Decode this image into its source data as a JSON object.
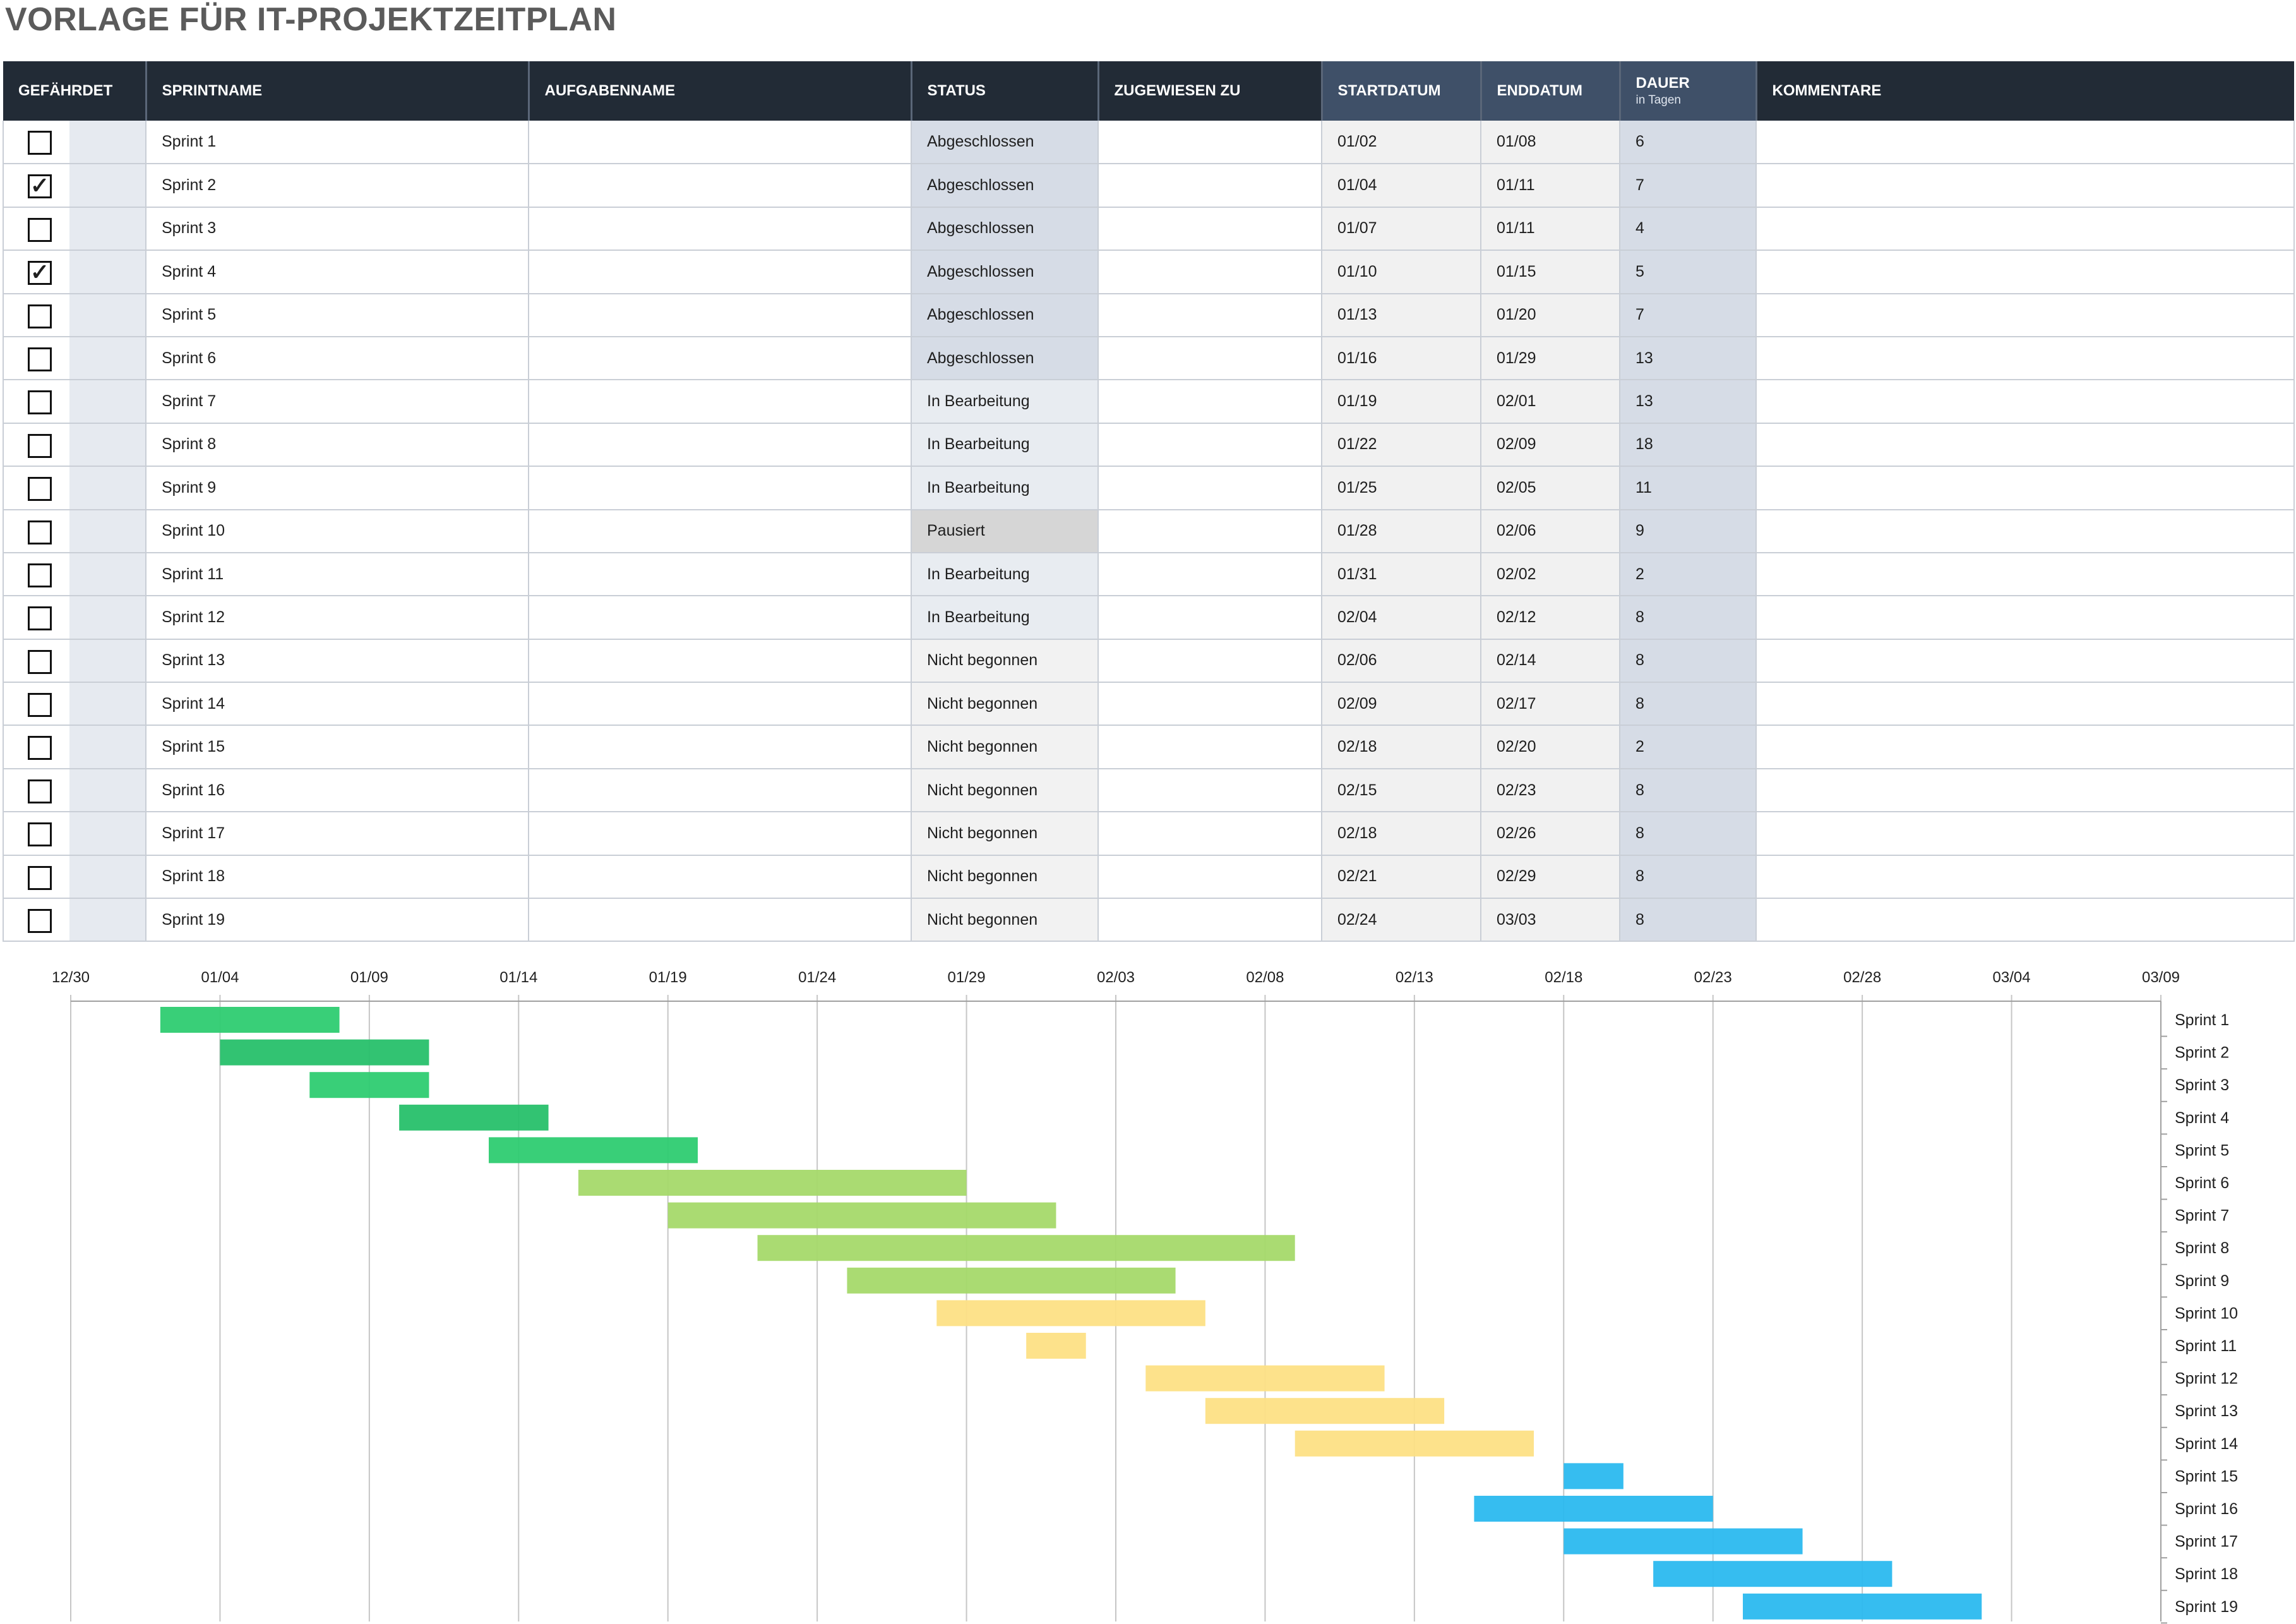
{
  "page": {
    "title": "VORLAGE FÜR IT-PROJEKTZEITPLAN"
  },
  "table": {
    "headers": {
      "gefaehrdet": "GEFÄHRDET",
      "sprintname": "SPRINTNAME",
      "aufgabenname": "AUFGABENNAME",
      "status": "STATUS",
      "zugewiesen": "ZUGEWIESEN ZU",
      "startdatum": "STARTDATUM",
      "enddatum": "ENDDATUM",
      "dauer": "DAUER",
      "dauer_sub": "in Tagen",
      "kommentare": "KOMMENTARE"
    },
    "rows": [
      {
        "at_risk": false,
        "sprint": "Sprint 1",
        "task": "",
        "status": "Abgeschlossen",
        "assigned": "",
        "start": "01/02",
        "end": "01/08",
        "duration": "6",
        "comment": ""
      },
      {
        "at_risk": true,
        "sprint": "Sprint 2",
        "task": "",
        "status": "Abgeschlossen",
        "assigned": "",
        "start": "01/04",
        "end": "01/11",
        "duration": "7",
        "comment": ""
      },
      {
        "at_risk": false,
        "sprint": "Sprint 3",
        "task": "",
        "status": "Abgeschlossen",
        "assigned": "",
        "start": "01/07",
        "end": "01/11",
        "duration": "4",
        "comment": ""
      },
      {
        "at_risk": true,
        "sprint": "Sprint 4",
        "task": "",
        "status": "Abgeschlossen",
        "assigned": "",
        "start": "01/10",
        "end": "01/15",
        "duration": "5",
        "comment": ""
      },
      {
        "at_risk": false,
        "sprint": "Sprint 5",
        "task": "",
        "status": "Abgeschlossen",
        "assigned": "",
        "start": "01/13",
        "end": "01/20",
        "duration": "7",
        "comment": ""
      },
      {
        "at_risk": false,
        "sprint": "Sprint 6",
        "task": "",
        "status": "Abgeschlossen",
        "assigned": "",
        "start": "01/16",
        "end": "01/29",
        "duration": "13",
        "comment": ""
      },
      {
        "at_risk": false,
        "sprint": "Sprint 7",
        "task": "",
        "status": "In Bearbeitung",
        "assigned": "",
        "start": "01/19",
        "end": "02/01",
        "duration": "13",
        "comment": ""
      },
      {
        "at_risk": false,
        "sprint": "Sprint 8",
        "task": "",
        "status": "In Bearbeitung",
        "assigned": "",
        "start": "01/22",
        "end": "02/09",
        "duration": "18",
        "comment": ""
      },
      {
        "at_risk": false,
        "sprint": "Sprint 9",
        "task": "",
        "status": "In Bearbeitung",
        "assigned": "",
        "start": "01/25",
        "end": "02/05",
        "duration": "11",
        "comment": ""
      },
      {
        "at_risk": false,
        "sprint": "Sprint 10",
        "task": "",
        "status": "Pausiert",
        "assigned": "",
        "start": "01/28",
        "end": "02/06",
        "duration": "9",
        "comment": ""
      },
      {
        "at_risk": false,
        "sprint": "Sprint 11",
        "task": "",
        "status": "In Bearbeitung",
        "assigned": "",
        "start": "01/31",
        "end": "02/02",
        "duration": "2",
        "comment": ""
      },
      {
        "at_risk": false,
        "sprint": "Sprint 12",
        "task": "",
        "status": "In Bearbeitung",
        "assigned": "",
        "start": "02/04",
        "end": "02/12",
        "duration": "8",
        "comment": ""
      },
      {
        "at_risk": false,
        "sprint": "Sprint 13",
        "task": "",
        "status": "Nicht begonnen",
        "assigned": "",
        "start": "02/06",
        "end": "02/14",
        "duration": "8",
        "comment": ""
      },
      {
        "at_risk": false,
        "sprint": "Sprint 14",
        "task": "",
        "status": "Nicht begonnen",
        "assigned": "",
        "start": "02/09",
        "end": "02/17",
        "duration": "8",
        "comment": ""
      },
      {
        "at_risk": false,
        "sprint": "Sprint 15",
        "task": "",
        "status": "Nicht begonnen",
        "assigned": "",
        "start": "02/18",
        "end": "02/20",
        "duration": "2",
        "comment": ""
      },
      {
        "at_risk": false,
        "sprint": "Sprint 16",
        "task": "",
        "status": "Nicht begonnen",
        "assigned": "",
        "start": "02/15",
        "end": "02/23",
        "duration": "8",
        "comment": ""
      },
      {
        "at_risk": false,
        "sprint": "Sprint 17",
        "task": "",
        "status": "Nicht begonnen",
        "assigned": "",
        "start": "02/18",
        "end": "02/26",
        "duration": "8",
        "comment": ""
      },
      {
        "at_risk": false,
        "sprint": "Sprint 18",
        "task": "",
        "status": "Nicht begonnen",
        "assigned": "",
        "start": "02/21",
        "end": "02/29",
        "duration": "8",
        "comment": ""
      },
      {
        "at_risk": false,
        "sprint": "Sprint 19",
        "task": "",
        "status": "Nicht begonnen",
        "assigned": "",
        "start": "02/24",
        "end": "03/03",
        "duration": "8",
        "comment": ""
      }
    ]
  },
  "status_colors": {
    "Abgeschlossen": "#2ecc71",
    "In Bearbeitung": "#a5d96a",
    "Pausiert": "#fde085",
    "Nicht begonnen": "#2bb9ef"
  },
  "chart_data": {
    "type": "bar",
    "orientation": "horizontal-gantt",
    "x_axis": {
      "tick_labels": [
        "12/30",
        "01/04",
        "01/09",
        "01/14",
        "01/19",
        "01/24",
        "01/29",
        "02/03",
        "02/08",
        "02/13",
        "02/18",
        "02/23",
        "02/28",
        "03/04",
        "03/09"
      ],
      "range": [
        "12/30",
        "03/09"
      ],
      "position": "top"
    },
    "categories": [
      "Sprint 1",
      "Sprint 2",
      "Sprint 3",
      "Sprint 4",
      "Sprint 5",
      "Sprint 6",
      "Sprint 7",
      "Sprint 8",
      "Sprint 9",
      "Sprint 10",
      "Sprint 11",
      "Sprint 12",
      "Sprint 13",
      "Sprint 14",
      "Sprint 15",
      "Sprint 16",
      "Sprint 17",
      "Sprint 18",
      "Sprint 19"
    ],
    "bars": [
      {
        "label": "Sprint 1",
        "start": "01/02",
        "end": "01/08",
        "color": "#2ecc71"
      },
      {
        "label": "Sprint 2",
        "start": "01/04",
        "end": "01/11",
        "color": "#27c06a"
      },
      {
        "label": "Sprint 3",
        "start": "01/07",
        "end": "01/11",
        "color": "#2ecc71"
      },
      {
        "label": "Sprint 4",
        "start": "01/10",
        "end": "01/15",
        "color": "#27c06a"
      },
      {
        "label": "Sprint 5",
        "start": "01/13",
        "end": "01/20",
        "color": "#2ecc71"
      },
      {
        "label": "Sprint 6",
        "start": "01/16",
        "end": "01/29",
        "color": "#a5d96a"
      },
      {
        "label": "Sprint 7",
        "start": "01/19",
        "end": "02/01",
        "color": "#a5d96a"
      },
      {
        "label": "Sprint 8",
        "start": "01/22",
        "end": "02/09",
        "color": "#a5d96a"
      },
      {
        "label": "Sprint 9",
        "start": "01/25",
        "end": "02/05",
        "color": "#a5d96a"
      },
      {
        "label": "Sprint 10",
        "start": "01/28",
        "end": "02/06",
        "color": "#fde085"
      },
      {
        "label": "Sprint 11",
        "start": "01/31",
        "end": "02/02",
        "color": "#fde085"
      },
      {
        "label": "Sprint 12",
        "start": "02/04",
        "end": "02/12",
        "color": "#fde085"
      },
      {
        "label": "Sprint 13",
        "start": "02/06",
        "end": "02/14",
        "color": "#fde085"
      },
      {
        "label": "Sprint 14",
        "start": "02/09",
        "end": "02/17",
        "color": "#fde085"
      },
      {
        "label": "Sprint 15",
        "start": "02/18",
        "end": "02/20",
        "color": "#2bb9ef"
      },
      {
        "label": "Sprint 16",
        "start": "02/15",
        "end": "02/23",
        "color": "#2bb9ef"
      },
      {
        "label": "Sprint 17",
        "start": "02/18",
        "end": "02/26",
        "color": "#2bb9ef"
      },
      {
        "label": "Sprint 18",
        "start": "02/21",
        "end": "02/29",
        "color": "#2bb9ef"
      },
      {
        "label": "Sprint 19",
        "start": "02/24",
        "end": "03/03",
        "color": "#2bb9ef"
      }
    ],
    "grid": true,
    "legend": "none"
  }
}
